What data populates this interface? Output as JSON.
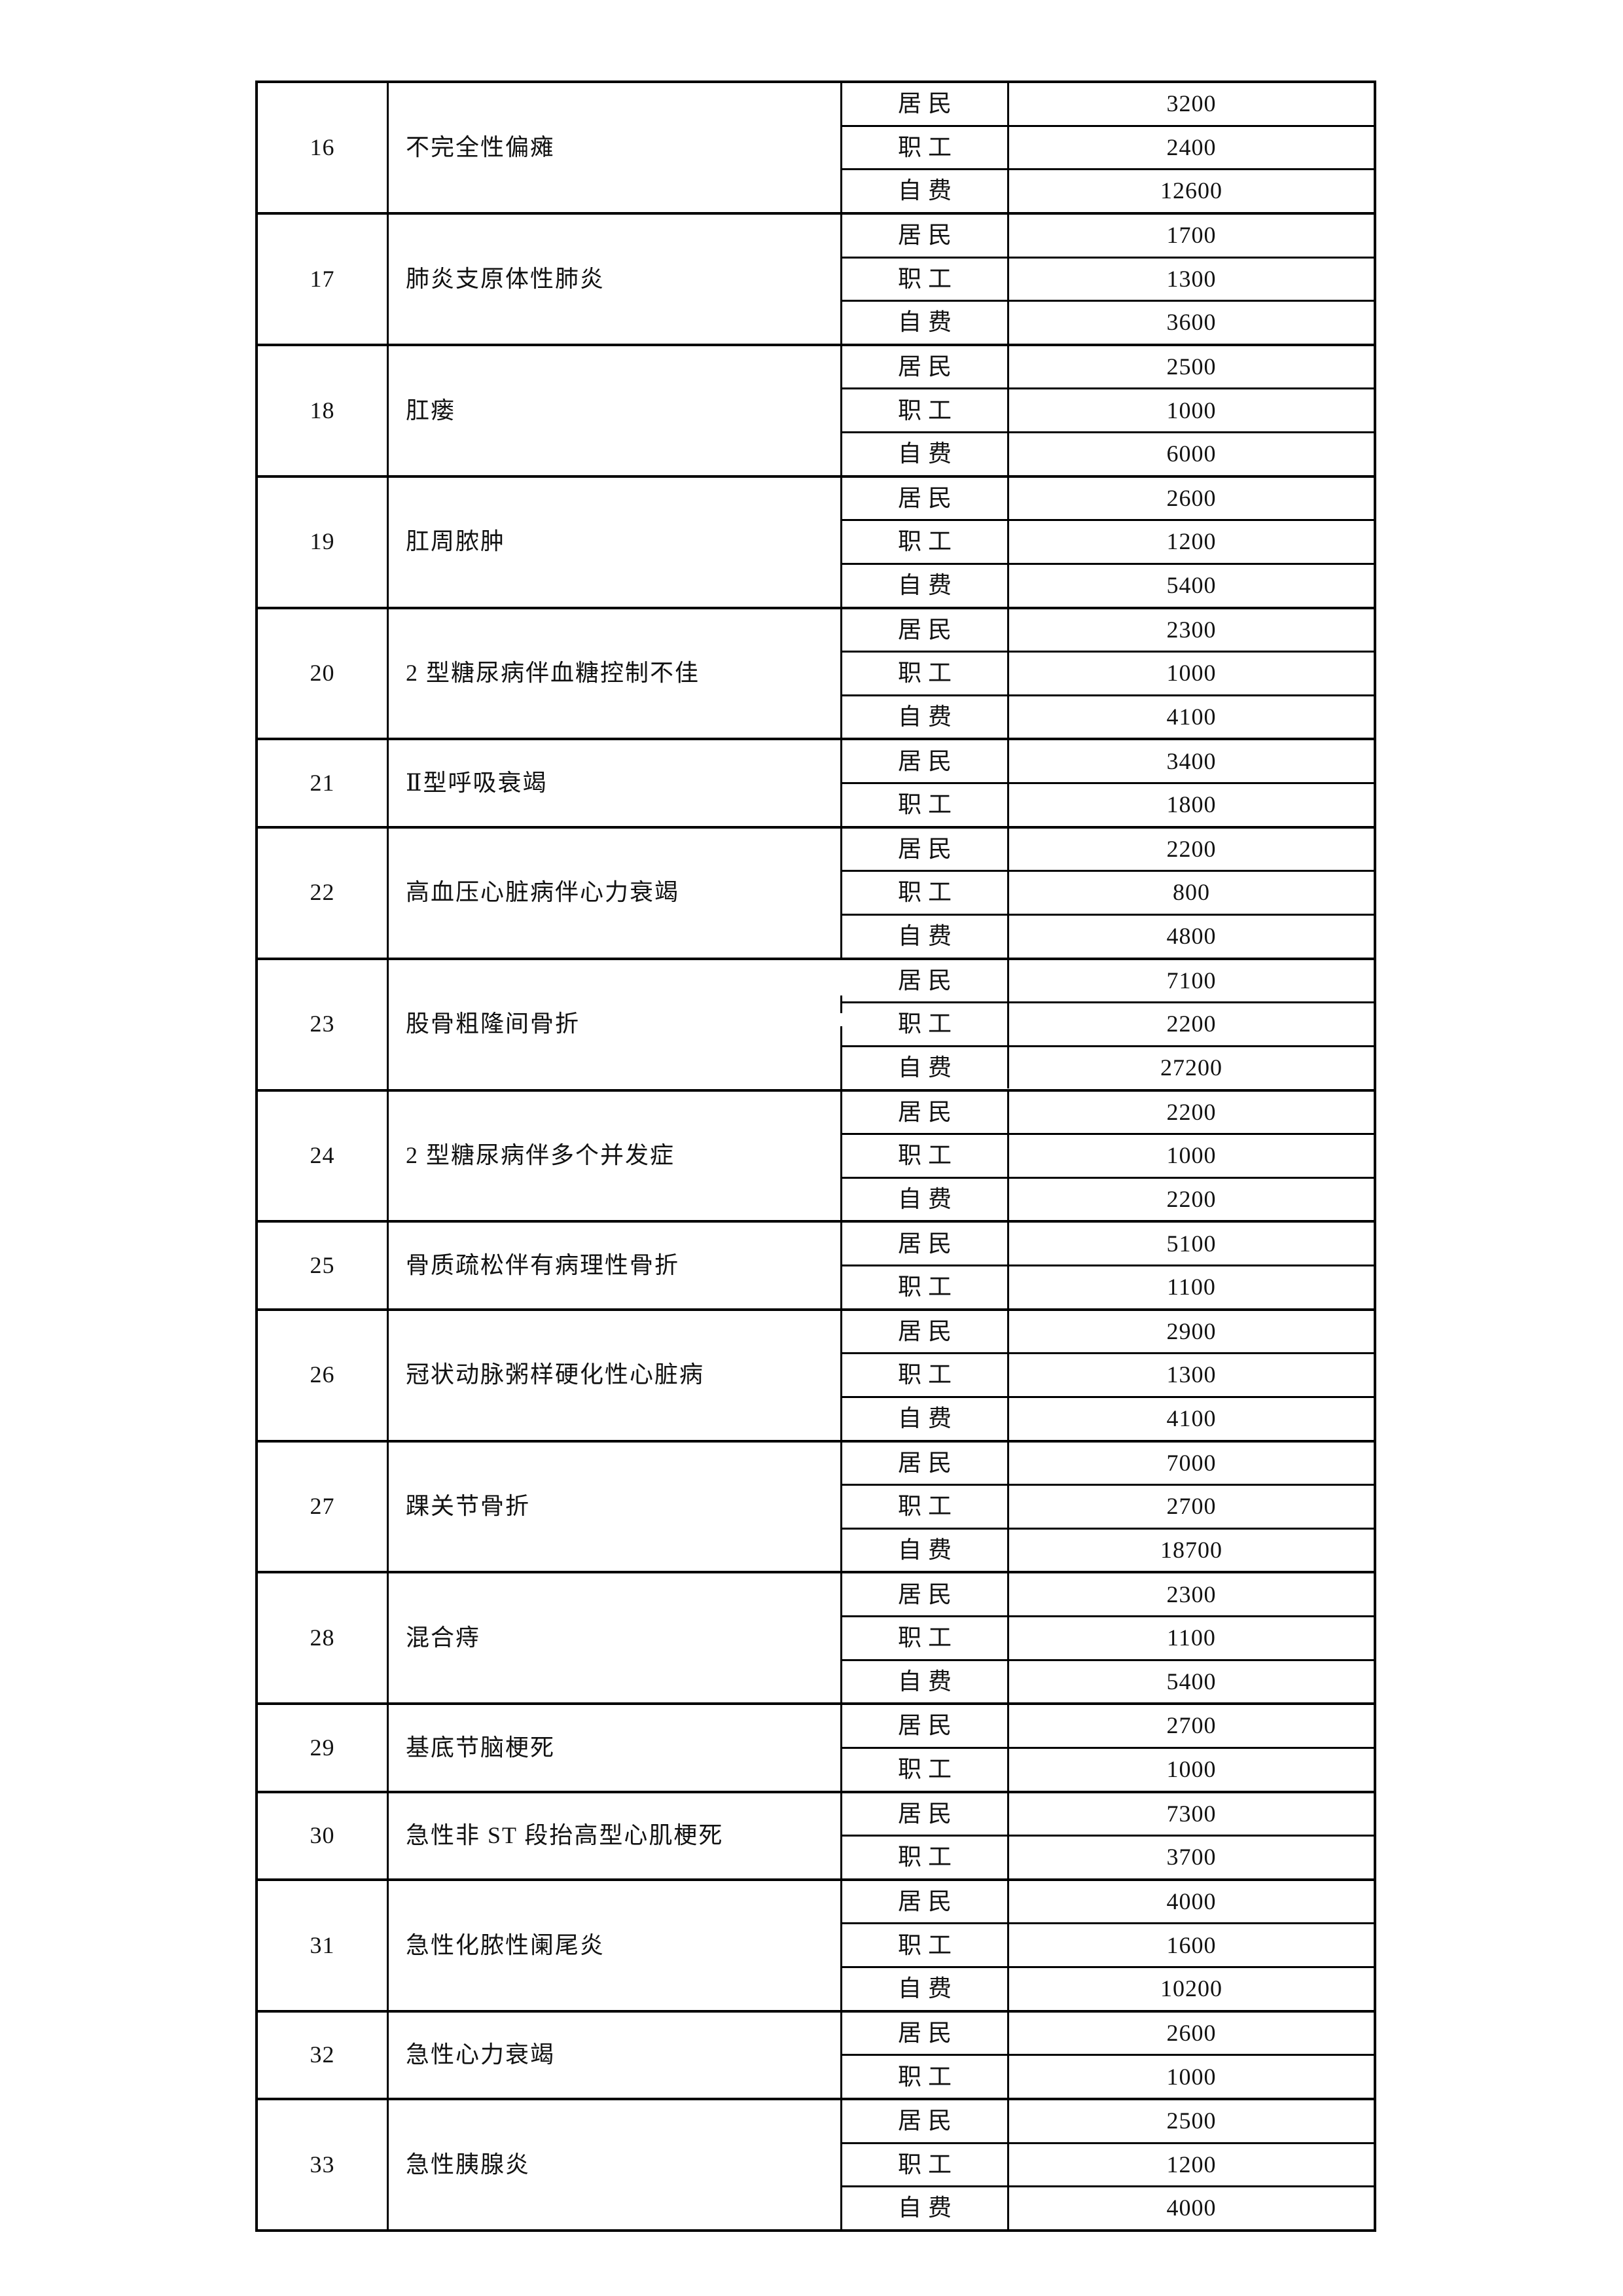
{
  "page": {
    "background_color": "#ffffff",
    "text_color": "#121212",
    "border_color": "#000000"
  },
  "table": {
    "description": "fee-standard-table-rows-16-to-33",
    "groups": [
      {
        "no": "16",
        "name": "不完全性偏瘫",
        "entries": [
          {
            "category": "居民",
            "amount": "3200"
          },
          {
            "category": "职工",
            "amount": "2400"
          },
          {
            "category": "自费",
            "amount": "12600"
          }
        ]
      },
      {
        "no": "17",
        "name": "肺炎支原体性肺炎",
        "entries": [
          {
            "category": "居民",
            "amount": "1700"
          },
          {
            "category": "职工",
            "amount": "1300"
          },
          {
            "category": "自费",
            "amount": "3600"
          }
        ]
      },
      {
        "no": "18",
        "name": "肛瘘",
        "entries": [
          {
            "category": "居民",
            "amount": "2500"
          },
          {
            "category": "职工",
            "amount": "1000"
          },
          {
            "category": "自费",
            "amount": "6000"
          }
        ]
      },
      {
        "no": "19",
        "name": "肛周脓肿",
        "entries": [
          {
            "category": "居民",
            "amount": "2600"
          },
          {
            "category": "职工",
            "amount": "1200"
          },
          {
            "category": "自费",
            "amount": "5400"
          }
        ]
      },
      {
        "no": "20",
        "name": "2 型糖尿病伴血糖控制不佳",
        "entries": [
          {
            "category": "居民",
            "amount": "2300"
          },
          {
            "category": "职工",
            "amount": "1000"
          },
          {
            "category": "自费",
            "amount": "4100"
          }
        ]
      },
      {
        "no": "21",
        "name": "Ⅱ型呼吸衰竭",
        "entries": [
          {
            "category": "居民",
            "amount": "3400"
          },
          {
            "category": "职工",
            "amount": "1800"
          }
        ]
      },
      {
        "no": "22",
        "name": "高血压心脏病伴心力衰竭",
        "entries": [
          {
            "category": "居民",
            "amount": "2200"
          },
          {
            "category": "职工",
            "amount": "800"
          },
          {
            "category": "自费",
            "amount": "4800"
          }
        ]
      },
      {
        "no": "23",
        "name": "股骨粗隆间骨折",
        "entries": [
          {
            "category": "居民",
            "amount": "7100"
          },
          {
            "category": "职工",
            "amount": "2200"
          },
          {
            "category": "自费",
            "amount": "27200"
          }
        ]
      },
      {
        "no": "24",
        "name": "2 型糖尿病伴多个并发症",
        "entries": [
          {
            "category": "居民",
            "amount": "2200"
          },
          {
            "category": "职工",
            "amount": "1000"
          },
          {
            "category": "自费",
            "amount": "2200"
          }
        ]
      },
      {
        "no": "25",
        "name": "骨质疏松伴有病理性骨折",
        "entries": [
          {
            "category": "居民",
            "amount": "5100"
          },
          {
            "category": "职工",
            "amount": "1100"
          }
        ]
      },
      {
        "no": "26",
        "name": "冠状动脉粥样硬化性心脏病",
        "entries": [
          {
            "category": "居民",
            "amount": "2900"
          },
          {
            "category": "职工",
            "amount": "1300"
          },
          {
            "category": "自费",
            "amount": "4100"
          }
        ]
      },
      {
        "no": "27",
        "name": "踝关节骨折",
        "entries": [
          {
            "category": "居民",
            "amount": "7000"
          },
          {
            "category": "职工",
            "amount": "2700"
          },
          {
            "category": "自费",
            "amount": "18700"
          }
        ]
      },
      {
        "no": "28",
        "name": "混合痔",
        "entries": [
          {
            "category": "居民",
            "amount": "2300"
          },
          {
            "category": "职工",
            "amount": "1100"
          },
          {
            "category": "自费",
            "amount": "5400"
          }
        ]
      },
      {
        "no": "29",
        "name": "基底节脑梗死",
        "entries": [
          {
            "category": "居民",
            "amount": "2700"
          },
          {
            "category": "职工",
            "amount": "1000"
          }
        ]
      },
      {
        "no": "30",
        "name": "急性非 ST 段抬高型心肌梗死",
        "entries": [
          {
            "category": "居民",
            "amount": "7300"
          },
          {
            "category": "职工",
            "amount": "3700"
          }
        ]
      },
      {
        "no": "31",
        "name": "急性化脓性阑尾炎",
        "entries": [
          {
            "category": "居民",
            "amount": "4000"
          },
          {
            "category": "职工",
            "amount": "1600"
          },
          {
            "category": "自费",
            "amount": "10200"
          }
        ]
      },
      {
        "no": "32",
        "name": "急性心力衰竭",
        "entries": [
          {
            "category": "居民",
            "amount": "2600"
          },
          {
            "category": "职工",
            "amount": "1000"
          }
        ]
      },
      {
        "no": "33",
        "name": "急性胰腺炎",
        "entries": [
          {
            "category": "居民",
            "amount": "2500"
          },
          {
            "category": "职工",
            "amount": "1200"
          },
          {
            "category": "自费",
            "amount": "4000"
          }
        ]
      }
    ]
  }
}
